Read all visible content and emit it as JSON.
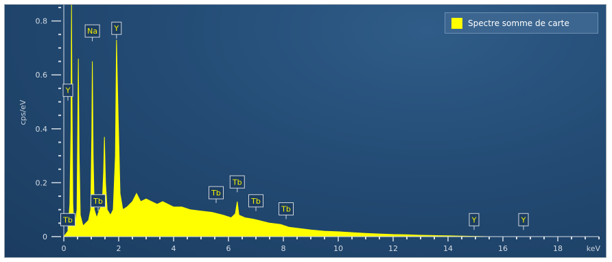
{
  "chart_data": {
    "type": "area",
    "title": "",
    "xlabel": "keV",
    "ylabel": "cps/eV",
    "xlim": [
      0,
      19.5
    ],
    "ylim": [
      0,
      0.86
    ],
    "x_ticks": [
      0,
      2,
      4,
      6,
      8,
      10,
      12,
      14,
      16,
      18
    ],
    "y_ticks": [
      0,
      0.2,
      0.4,
      0.6,
      0.8
    ],
    "x_tick_labels": [
      "0",
      "2",
      "4",
      "6",
      "8",
      "10",
      "12",
      "14",
      "16",
      "18"
    ],
    "y_tick_labels": [
      "0",
      "0.2",
      "0.4",
      "0.6",
      "0.8"
    ],
    "grid": false,
    "legend_position": "top-right",
    "series": [
      {
        "name": "Spectre somme de carte",
        "color": "#ffff00",
        "points": [
          [
            0.0,
            0.0
          ],
          [
            0.15,
            0.02
          ],
          [
            0.22,
            0.12
          ],
          [
            0.26,
            0.4
          ],
          [
            0.28,
            0.86
          ],
          [
            0.3,
            0.5
          ],
          [
            0.33,
            0.12
          ],
          [
            0.36,
            0.06
          ],
          [
            0.42,
            0.05
          ],
          [
            0.48,
            0.1
          ],
          [
            0.53,
            0.66
          ],
          [
            0.56,
            0.3
          ],
          [
            0.6,
            0.08
          ],
          [
            0.7,
            0.04
          ],
          [
            0.8,
            0.05
          ],
          [
            0.9,
            0.06
          ],
          [
            0.98,
            0.1
          ],
          [
            1.02,
            0.38
          ],
          [
            1.04,
            0.65
          ],
          [
            1.07,
            0.3
          ],
          [
            1.11,
            0.1
          ],
          [
            1.2,
            0.07
          ],
          [
            1.3,
            0.1
          ],
          [
            1.4,
            0.12
          ],
          [
            1.45,
            0.24
          ],
          [
            1.48,
            0.37
          ],
          [
            1.52,
            0.2
          ],
          [
            1.58,
            0.1
          ],
          [
            1.7,
            0.08
          ],
          [
            1.8,
            0.1
          ],
          [
            1.88,
            0.3
          ],
          [
            1.92,
            0.73
          ],
          [
            1.98,
            0.45
          ],
          [
            2.05,
            0.16
          ],
          [
            2.15,
            0.1
          ],
          [
            2.3,
            0.11
          ],
          [
            2.5,
            0.13
          ],
          [
            2.65,
            0.16
          ],
          [
            2.8,
            0.13
          ],
          [
            3.0,
            0.14
          ],
          [
            3.2,
            0.13
          ],
          [
            3.4,
            0.12
          ],
          [
            3.6,
            0.13
          ],
          [
            3.8,
            0.12
          ],
          [
            4.0,
            0.11
          ],
          [
            4.3,
            0.11
          ],
          [
            4.6,
            0.1
          ],
          [
            5.0,
            0.095
          ],
          [
            5.4,
            0.09
          ],
          [
            5.8,
            0.08
          ],
          [
            6.1,
            0.07
          ],
          [
            6.25,
            0.085
          ],
          [
            6.32,
            0.13
          ],
          [
            6.38,
            0.08
          ],
          [
            6.6,
            0.07
          ],
          [
            6.9,
            0.065
          ],
          [
            7.1,
            0.06
          ],
          [
            7.5,
            0.05
          ],
          [
            7.9,
            0.045
          ],
          [
            8.2,
            0.035
          ],
          [
            8.6,
            0.03
          ],
          [
            9.0,
            0.025
          ],
          [
            9.5,
            0.02
          ],
          [
            10.0,
            0.018
          ],
          [
            10.5,
            0.015
          ],
          [
            11.0,
            0.012
          ],
          [
            11.5,
            0.01
          ],
          [
            12.0,
            0.008
          ],
          [
            12.5,
            0.007
          ],
          [
            13.0,
            0.005
          ],
          [
            13.5,
            0.004
          ],
          [
            14.0,
            0.003
          ],
          [
            14.5,
            0.002
          ],
          [
            15.0,
            0.001
          ],
          [
            15.5,
            0.0
          ]
        ]
      }
    ],
    "peak_labels": [
      {
        "text": "Y",
        "x": 0.15,
        "y": 0.52
      },
      {
        "text": "Tb",
        "x": 0.15,
        "y": 0.04
      },
      {
        "text": "Na",
        "x": 1.04,
        "y": 0.74
      },
      {
        "text": "Y",
        "x": 1.92,
        "y": 0.75
      },
      {
        "text": "Tb",
        "x": 1.25,
        "y": 0.11
      },
      {
        "text": "Tb",
        "x": 5.55,
        "y": 0.14
      },
      {
        "text": "Tb",
        "x": 6.32,
        "y": 0.18
      },
      {
        "text": "Tb",
        "x": 7.0,
        "y": 0.11
      },
      {
        "text": "Tb",
        "x": 8.1,
        "y": 0.08
      },
      {
        "text": "Y",
        "x": 14.95,
        "y": 0.04
      },
      {
        "text": "Y",
        "x": 16.75,
        "y": 0.04
      }
    ]
  },
  "legend": {
    "label": "Spectre somme de carte",
    "swatch_color": "#ffff00"
  }
}
